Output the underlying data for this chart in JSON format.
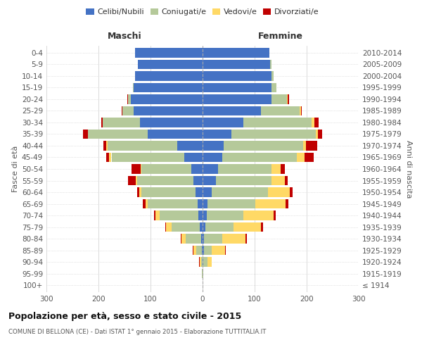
{
  "age_groups": [
    "100+",
    "95-99",
    "90-94",
    "85-89",
    "80-84",
    "75-79",
    "70-74",
    "65-69",
    "60-64",
    "55-59",
    "50-54",
    "45-49",
    "40-44",
    "35-39",
    "30-34",
    "25-29",
    "20-24",
    "15-19",
    "10-14",
    "5-9",
    "0-4"
  ],
  "birth_years": [
    "≤ 1914",
    "1915-1919",
    "1920-1924",
    "1925-1929",
    "1930-1934",
    "1935-1939",
    "1940-1944",
    "1945-1949",
    "1950-1954",
    "1955-1959",
    "1960-1964",
    "1965-1969",
    "1970-1974",
    "1975-1979",
    "1980-1984",
    "1985-1989",
    "1990-1994",
    "1995-1999",
    "2000-2004",
    "2005-2009",
    "2010-2014"
  ],
  "male_celibi": [
    0,
    0,
    0,
    2,
    3,
    5,
    8,
    10,
    13,
    18,
    22,
    35,
    48,
    105,
    120,
    132,
    138,
    132,
    130,
    125,
    130
  ],
  "male_coniugati": [
    0,
    1,
    3,
    10,
    30,
    55,
    75,
    95,
    105,
    108,
    95,
    140,
    135,
    115,
    72,
    22,
    5,
    2,
    0,
    0,
    0
  ],
  "male_vedovi": [
    0,
    0,
    3,
    6,
    8,
    10,
    8,
    5,
    3,
    2,
    2,
    5,
    2,
    0,
    0,
    0,
    0,
    0,
    0,
    0,
    0
  ],
  "male_divorziati": [
    0,
    0,
    1,
    1,
    1,
    2,
    2,
    5,
    5,
    15,
    18,
    5,
    5,
    10,
    2,
    2,
    2,
    0,
    0,
    0,
    0
  ],
  "female_nubili": [
    0,
    0,
    1,
    3,
    3,
    5,
    8,
    10,
    18,
    25,
    30,
    38,
    40,
    55,
    78,
    112,
    132,
    132,
    132,
    130,
    128
  ],
  "female_coniugate": [
    0,
    1,
    8,
    15,
    35,
    55,
    70,
    92,
    108,
    108,
    102,
    143,
    153,
    162,
    132,
    75,
    30,
    10,
    5,
    2,
    0
  ],
  "female_vedove": [
    0,
    0,
    8,
    25,
    45,
    52,
    58,
    58,
    42,
    25,
    18,
    15,
    5,
    5,
    5,
    2,
    2,
    0,
    0,
    0,
    0
  ],
  "female_divorziate": [
    0,
    0,
    1,
    1,
    2,
    4,
    5,
    5,
    5,
    5,
    8,
    18,
    22,
    8,
    8,
    2,
    2,
    0,
    0,
    0,
    0
  ],
  "colors": {
    "celibi_nubili": "#4472c4",
    "coniugati": "#b5c99a",
    "vedovi": "#ffd966",
    "divorziati": "#c00000"
  },
  "title": "Popolazione per età, sesso e stato civile - 2015",
  "subtitle": "COMUNE DI BELLONA (CE) - Dati ISTAT 1° gennaio 2015 - Elaborazione TUTTITALIA.IT",
  "ylabel_left": "Fasce di età",
  "ylabel_right": "Anni di nascita",
  "xlabel_left": "Maschi",
  "xlabel_right": "Femmine",
  "background_color": "#ffffff",
  "grid_color": "#cccccc"
}
